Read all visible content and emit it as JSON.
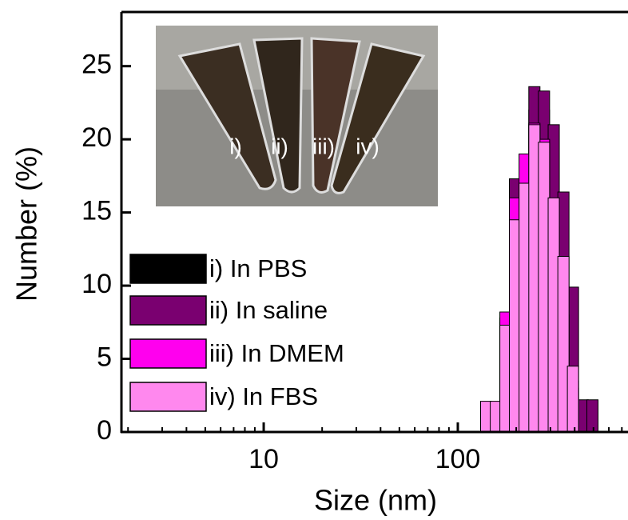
{
  "chart_data": {
    "type": "bar",
    "x_label": "Size (nm)",
    "y_label": "Number (%)",
    "xscale": "log",
    "xlim": [
      1.85,
      753
    ],
    "ylim": [
      0,
      28.7
    ],
    "xticks": [
      10,
      100
    ],
    "yticks": [
      0,
      5,
      10,
      15,
      20,
      25
    ],
    "x": [
      125,
      140,
      157,
      176,
      197,
      221,
      248,
      278,
      312,
      350,
      392,
      440,
      494
    ],
    "series": [
      {
        "name": "i) In PBS",
        "color": "#000000",
        "values": [
          0,
          0,
          0,
          7.8,
          17.3,
          16,
          22,
          22,
          15,
          8,
          3,
          0,
          0
        ]
      },
      {
        "name": "ii) In saline",
        "color": "#7a0070",
        "values": [
          0,
          0,
          0,
          7.5,
          17.3,
          17,
          23.6,
          23.3,
          21,
          16.4,
          9.9,
          2.2,
          2.2
        ]
      },
      {
        "name": "iii) In DMEM",
        "color": "#ff00ee",
        "values": [
          0,
          0,
          0,
          8.2,
          16,
          19,
          21.1,
          20,
          14,
          8,
          3.5,
          0,
          0
        ]
      },
      {
        "name": "iv) In FBS",
        "color": "#ff88ee",
        "values": [
          0,
          2.1,
          2.1,
          7.3,
          14.5,
          17,
          21,
          19.8,
          16,
          12,
          4.5,
          0,
          0
        ]
      }
    ],
    "legend": "left",
    "inset_labels": [
      "i)",
      "ii)",
      "iii)",
      "iv)"
    ]
  }
}
